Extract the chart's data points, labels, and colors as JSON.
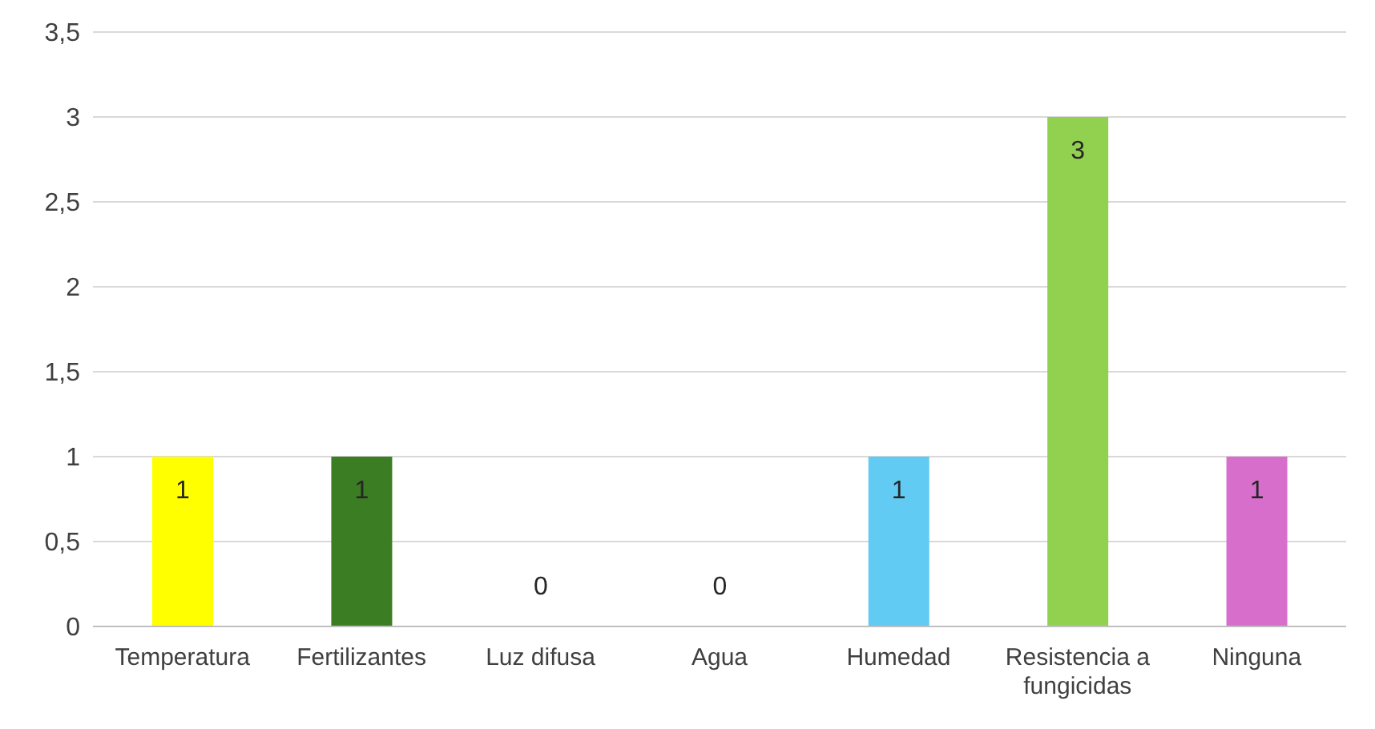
{
  "chart_data": {
    "type": "bar",
    "categories": [
      "Temperatura",
      "Fertilizantes",
      "Luz difusa",
      "Agua",
      "Humedad",
      "Resistencia a fungicidas",
      "Ninguna"
    ],
    "values": [
      1,
      1,
      0,
      0,
      1,
      3,
      1
    ],
    "colors": [
      "#ffff00",
      "#3a7d22",
      "#a6a6a6",
      "#a6a6a6",
      "#61cbf3",
      "#92d050",
      "#d86ecc"
    ],
    "ylim": [
      0,
      3.5
    ],
    "yticks": [
      0,
      {
        "value": 0.5,
        "label": "0,5"
      },
      1,
      {
        "value": 1.5,
        "label": "1,5"
      },
      2,
      {
        "value": 2.5,
        "label": "2,5"
      },
      3,
      {
        "value": 3.5,
        "label": "3,5"
      }
    ],
    "grid": "y",
    "data_labels": true
  }
}
